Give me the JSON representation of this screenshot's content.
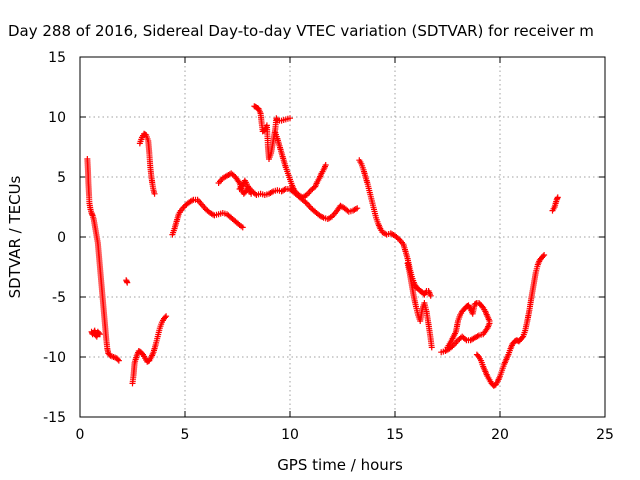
{
  "chart_data": {
    "type": "scatter",
    "title": "Day 288 of 2016, Sidereal Day-to-day VTEC variation (SDTVAR) for receiver m",
    "xlabel": "GPS time / hours",
    "ylabel": "SDTVAR / TECUs",
    "xlim": [
      0,
      25
    ],
    "ylim": [
      -15,
      15
    ],
    "xticks": [
      0,
      5,
      10,
      15,
      20,
      25
    ],
    "yticks": [
      -15,
      -10,
      -5,
      0,
      5,
      10,
      15
    ],
    "xtick_labels": [
      "0",
      "5",
      "10",
      "15",
      "20",
      "25"
    ],
    "ytick_labels": [
      "-15",
      "-10",
      "-5",
      "0",
      "5",
      "10",
      "15"
    ],
    "grid": true,
    "marker": "+",
    "marker_color": "#ff0000",
    "series": [
      {
        "points": [
          [
            0.35,
            6.5
          ],
          [
            0.38,
            5.5
          ],
          [
            0.4,
            4.5
          ],
          [
            0.43,
            3.5
          ],
          [
            0.45,
            2.8
          ],
          [
            0.5,
            2.3
          ],
          [
            0.55,
            2.0
          ],
          [
            0.6,
            1.8
          ],
          [
            0.65,
            1.5
          ],
          [
            0.7,
            1.0
          ],
          [
            0.75,
            0.5
          ],
          [
            0.8,
            0.0
          ],
          [
            0.85,
            -0.5
          ],
          [
            0.9,
            -1.5
          ],
          [
            0.95,
            -2.5
          ],
          [
            1.0,
            -3.5
          ],
          [
            1.05,
            -4.5
          ],
          [
            1.1,
            -5.5
          ],
          [
            1.15,
            -6.5
          ],
          [
            1.2,
            -7.5
          ],
          [
            1.25,
            -8.5
          ],
          [
            1.3,
            -9.3
          ],
          [
            1.35,
            -9.7
          ],
          [
            1.45,
            -9.9
          ],
          [
            1.6,
            -10.0
          ],
          [
            1.75,
            -10.1
          ],
          [
            1.85,
            -10.3
          ]
        ]
      },
      {
        "points": [
          [
            0.55,
            -7.9
          ],
          [
            0.6,
            -8.1
          ],
          [
            0.65,
            -8.0
          ],
          [
            0.7,
            -7.8
          ],
          [
            0.75,
            -8.2
          ],
          [
            0.8,
            -8.3
          ],
          [
            0.85,
            -7.9
          ],
          [
            0.9,
            -8.0
          ],
          [
            0.95,
            -8.1
          ]
        ]
      },
      {
        "points": [
          [
            2.2,
            -3.6
          ],
          [
            2.25,
            -3.8
          ]
        ]
      },
      {
        "points": [
          [
            2.5,
            -12.2
          ],
          [
            2.55,
            -11.5
          ],
          [
            2.6,
            -10.5
          ],
          [
            2.7,
            -9.9
          ],
          [
            2.8,
            -9.5
          ],
          [
            2.9,
            -9.6
          ],
          [
            3.0,
            -9.8
          ],
          [
            3.1,
            -10.1
          ],
          [
            3.2,
            -10.4
          ],
          [
            3.3,
            -10.3
          ],
          [
            3.4,
            -10.0
          ],
          [
            3.5,
            -9.6
          ],
          [
            3.6,
            -9.0
          ],
          [
            3.7,
            -8.3
          ],
          [
            3.8,
            -7.6
          ],
          [
            3.9,
            -7.1
          ],
          [
            4.0,
            -6.8
          ],
          [
            4.1,
            -6.6
          ]
        ]
      },
      {
        "points": [
          [
            2.85,
            7.8
          ],
          [
            2.95,
            8.3
          ],
          [
            3.05,
            8.6
          ],
          [
            3.15,
            8.5
          ],
          [
            3.25,
            8.0
          ],
          [
            3.3,
            7.0
          ],
          [
            3.35,
            5.8
          ],
          [
            3.4,
            5.0
          ],
          [
            3.45,
            4.4
          ],
          [
            3.5,
            3.9
          ],
          [
            3.55,
            3.6
          ]
        ]
      },
      {
        "points": [
          [
            4.4,
            0.2
          ],
          [
            4.5,
            0.7
          ],
          [
            4.6,
            1.3
          ],
          [
            4.7,
            1.9
          ],
          [
            4.8,
            2.2
          ],
          [
            5.0,
            2.6
          ],
          [
            5.2,
            2.9
          ],
          [
            5.4,
            3.1
          ],
          [
            5.6,
            3.1
          ],
          [
            5.8,
            2.7
          ],
          [
            6.0,
            2.3
          ],
          [
            6.2,
            2.0
          ],
          [
            6.4,
            1.8
          ],
          [
            6.6,
            1.9
          ],
          [
            6.8,
            2.0
          ],
          [
            7.0,
            1.9
          ],
          [
            7.2,
            1.6
          ],
          [
            7.4,
            1.3
          ],
          [
            7.6,
            1.0
          ],
          [
            7.75,
            0.8
          ]
        ]
      },
      {
        "points": [
          [
            6.6,
            4.5
          ],
          [
            6.8,
            4.9
          ],
          [
            7.0,
            5.1
          ],
          [
            7.2,
            5.3
          ],
          [
            7.4,
            5.0
          ],
          [
            7.6,
            4.5
          ],
          [
            7.7,
            3.9
          ],
          [
            7.8,
            3.6
          ],
          [
            7.9,
            3.8
          ],
          [
            8.0,
            4.2
          ],
          [
            8.2,
            3.8
          ],
          [
            8.4,
            3.5
          ],
          [
            8.6,
            3.6
          ],
          [
            8.8,
            3.5
          ],
          [
            9.0,
            3.6
          ],
          [
            9.2,
            3.8
          ],
          [
            9.4,
            3.9
          ],
          [
            9.6,
            3.8
          ],
          [
            9.8,
            4.0
          ],
          [
            10.0,
            4.0
          ],
          [
            10.2,
            3.7
          ],
          [
            10.4,
            3.4
          ],
          [
            10.6,
            3.1
          ],
          [
            10.8,
            2.8
          ],
          [
            11.0,
            2.4
          ],
          [
            11.2,
            2.1
          ],
          [
            11.4,
            1.8
          ],
          [
            11.6,
            1.6
          ],
          [
            11.8,
            1.5
          ],
          [
            12.0,
            1.7
          ],
          [
            12.2,
            2.1
          ],
          [
            12.4,
            2.6
          ],
          [
            12.6,
            2.4
          ],
          [
            12.8,
            2.1
          ],
          [
            13.0,
            2.2
          ],
          [
            13.2,
            2.4
          ]
        ]
      },
      {
        "points": [
          [
            7.6,
            4.0
          ],
          [
            7.75,
            4.3
          ],
          [
            7.85,
            4.7
          ],
          [
            7.95,
            4.4
          ],
          [
            8.05,
            3.9
          ],
          [
            8.15,
            3.6
          ]
        ]
      },
      {
        "points": [
          [
            8.3,
            10.9
          ],
          [
            8.4,
            10.8
          ],
          [
            8.5,
            10.7
          ],
          [
            8.6,
            10.3
          ],
          [
            8.65,
            9.5
          ],
          [
            8.7,
            8.8
          ],
          [
            8.8,
            8.9
          ],
          [
            8.9,
            9.3
          ],
          [
            8.95,
            7.5
          ],
          [
            9.0,
            6.5
          ],
          [
            9.1,
            7.0
          ],
          [
            9.2,
            8.0
          ],
          [
            9.3,
            9.0
          ],
          [
            9.35,
            9.9
          ],
          [
            9.4,
            9.7
          ],
          [
            9.6,
            9.7
          ],
          [
            9.8,
            9.8
          ],
          [
            10.0,
            9.9
          ]
        ]
      },
      {
        "points": [
          [
            9.3,
            8.7
          ],
          [
            9.4,
            8.2
          ],
          [
            9.5,
            7.6
          ],
          [
            9.6,
            7.0
          ],
          [
            9.7,
            6.4
          ],
          [
            9.8,
            5.8
          ],
          [
            9.9,
            5.3
          ],
          [
            10.0,
            4.8
          ],
          [
            10.1,
            4.3
          ],
          [
            10.2,
            3.9
          ],
          [
            10.4,
            3.5
          ],
          [
            10.6,
            3.3
          ],
          [
            10.8,
            3.5
          ],
          [
            11.0,
            3.9
          ],
          [
            11.2,
            4.2
          ],
          [
            11.3,
            4.6
          ],
          [
            11.4,
            4.9
          ],
          [
            11.5,
            5.3
          ],
          [
            11.6,
            5.6
          ],
          [
            11.7,
            6.0
          ]
        ]
      },
      {
        "points": [
          [
            13.3,
            6.4
          ],
          [
            13.4,
            6.1
          ],
          [
            13.5,
            5.6
          ],
          [
            13.6,
            5.0
          ],
          [
            13.7,
            4.4
          ],
          [
            13.8,
            3.7
          ],
          [
            13.9,
            3.0
          ],
          [
            14.0,
            2.3
          ],
          [
            14.1,
            1.6
          ],
          [
            14.2,
            1.1
          ],
          [
            14.3,
            0.7
          ],
          [
            14.4,
            0.4
          ],
          [
            14.6,
            0.2
          ],
          [
            14.8,
            0.3
          ],
          [
            15.0,
            0.1
          ],
          [
            15.2,
            -0.2
          ],
          [
            15.4,
            -0.6
          ],
          [
            15.5,
            -1.2
          ],
          [
            15.6,
            -1.8
          ],
          [
            15.7,
            -2.6
          ],
          [
            15.8,
            -3.3
          ],
          [
            15.9,
            -3.8
          ],
          [
            16.0,
            -4.2
          ],
          [
            16.1,
            -4.3
          ],
          [
            16.2,
            -4.5
          ],
          [
            16.3,
            -4.6
          ],
          [
            16.4,
            -4.8
          ],
          [
            16.5,
            -4.5
          ],
          [
            16.6,
            -4.5
          ],
          [
            16.7,
            -4.9
          ]
        ]
      },
      {
        "points": [
          [
            15.6,
            -2.2
          ],
          [
            15.7,
            -3.0
          ],
          [
            15.8,
            -4.0
          ],
          [
            15.9,
            -5.0
          ],
          [
            16.0,
            -5.8
          ],
          [
            16.1,
            -6.5
          ],
          [
            16.2,
            -7.0
          ],
          [
            16.3,
            -6.0
          ],
          [
            16.4,
            -5.5
          ],
          [
            16.5,
            -6.2
          ],
          [
            16.6,
            -7.3
          ],
          [
            16.7,
            -8.5
          ],
          [
            16.75,
            -9.2
          ]
        ]
      },
      {
        "points": [
          [
            17.2,
            -9.6
          ],
          [
            17.4,
            -9.5
          ],
          [
            17.6,
            -9.3
          ],
          [
            17.8,
            -9.0
          ],
          [
            18.0,
            -8.6
          ],
          [
            18.2,
            -8.3
          ],
          [
            18.4,
            -8.6
          ],
          [
            18.6,
            -8.6
          ],
          [
            18.8,
            -8.4
          ],
          [
            19.0,
            -8.2
          ],
          [
            19.2,
            -8.1
          ],
          [
            19.4,
            -7.6
          ],
          [
            19.5,
            -7.2
          ]
        ]
      },
      {
        "points": [
          [
            17.5,
            -9.2
          ],
          [
            17.7,
            -8.6
          ],
          [
            17.9,
            -7.9
          ],
          [
            18.0,
            -7.0
          ],
          [
            18.1,
            -6.5
          ],
          [
            18.2,
            -6.2
          ],
          [
            18.3,
            -6.0
          ],
          [
            18.4,
            -5.8
          ],
          [
            18.5,
            -5.7
          ],
          [
            18.6,
            -6.0
          ],
          [
            18.7,
            -6.4
          ],
          [
            18.8,
            -5.6
          ],
          [
            18.9,
            -5.5
          ],
          [
            19.0,
            -5.5
          ],
          [
            19.1,
            -5.7
          ],
          [
            19.2,
            -5.9
          ],
          [
            19.3,
            -6.2
          ],
          [
            19.4,
            -6.6
          ],
          [
            19.5,
            -7.0
          ]
        ]
      },
      {
        "points": [
          [
            18.9,
            -9.8
          ],
          [
            19.0,
            -10.0
          ],
          [
            19.1,
            -10.3
          ],
          [
            19.2,
            -10.8
          ],
          [
            19.3,
            -11.2
          ],
          [
            19.4,
            -11.6
          ],
          [
            19.5,
            -11.9
          ],
          [
            19.6,
            -12.2
          ],
          [
            19.7,
            -12.4
          ],
          [
            19.8,
            -12.3
          ],
          [
            19.9,
            -12.0
          ],
          [
            20.0,
            -11.6
          ],
          [
            20.1,
            -11.1
          ],
          [
            20.2,
            -10.6
          ],
          [
            20.3,
            -10.2
          ],
          [
            20.4,
            -9.8
          ],
          [
            20.5,
            -9.3
          ],
          [
            20.6,
            -8.9
          ],
          [
            20.7,
            -8.7
          ],
          [
            20.8,
            -8.6
          ],
          [
            20.9,
            -8.7
          ],
          [
            21.0,
            -8.5
          ],
          [
            21.1,
            -8.3
          ],
          [
            21.2,
            -7.8
          ],
          [
            21.3,
            -7.0
          ],
          [
            21.4,
            -6.1
          ],
          [
            21.5,
            -5.0
          ],
          [
            21.6,
            -4.0
          ],
          [
            21.7,
            -3.0
          ],
          [
            21.8,
            -2.3
          ],
          [
            21.9,
            -1.9
          ],
          [
            22.0,
            -1.7
          ],
          [
            22.1,
            -1.5
          ]
        ]
      },
      {
        "points": [
          [
            22.5,
            2.2
          ],
          [
            22.6,
            2.5
          ],
          [
            22.65,
            2.8
          ],
          [
            22.7,
            3.1
          ],
          [
            22.75,
            3.3
          ]
        ]
      }
    ]
  }
}
